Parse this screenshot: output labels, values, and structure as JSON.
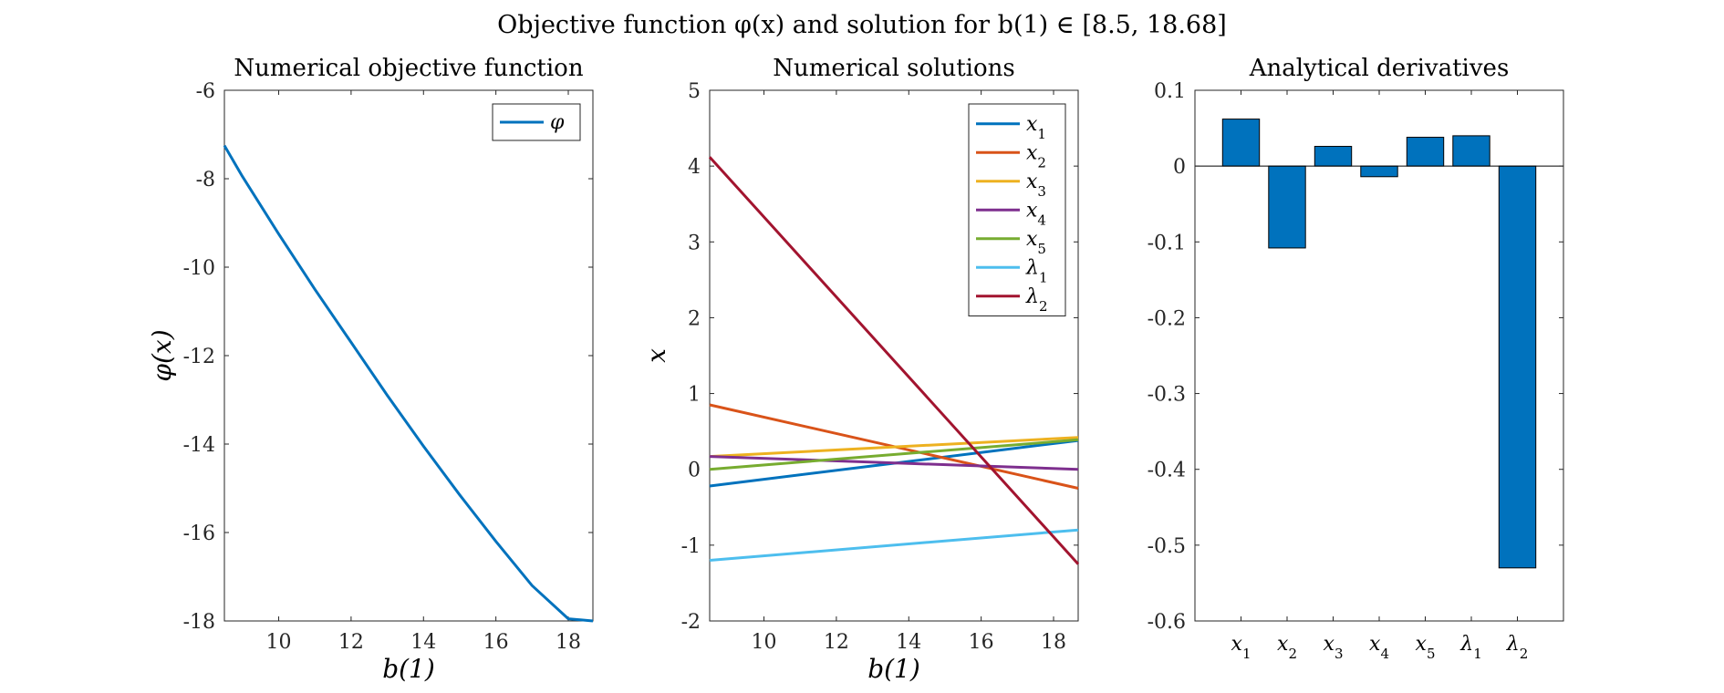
{
  "suptitle": "Objective function φ(x) and solution for b(1) ∈ [8.5, 18.68]",
  "chart_data": [
    {
      "type": "line",
      "title": "Numerical objective function",
      "xlabel": "b(1)",
      "ylabel": "φ(x)",
      "xlim": [
        8.5,
        18.68
      ],
      "ylim": [
        -18,
        -6
      ],
      "xticks": [
        10,
        12,
        14,
        16,
        18
      ],
      "yticks": [
        -6,
        -8,
        -10,
        -12,
        -14,
        -16,
        -18
      ],
      "legend_position": "top-right",
      "grid": false,
      "series": [
        {
          "name": "φ",
          "color": "#0072BD",
          "x": [
            8.5,
            9,
            10,
            11,
            12,
            13,
            14,
            15,
            16,
            17,
            18,
            18.68
          ],
          "y": [
            -7.25,
            -7.95,
            -9.25,
            -10.5,
            -11.7,
            -12.9,
            -14.05,
            -15.15,
            -16.2,
            -17.2,
            -17.95,
            -18.0
          ]
        }
      ]
    },
    {
      "type": "line",
      "title": "Numerical solutions",
      "xlabel": "b(1)",
      "ylabel": "x",
      "xlim": [
        8.5,
        18.68
      ],
      "ylim": [
        -2,
        5
      ],
      "xticks": [
        10,
        12,
        14,
        16,
        18
      ],
      "yticks": [
        5,
        4,
        3,
        2,
        1,
        0,
        -1,
        -2
      ],
      "legend_position": "top-right",
      "grid": false,
      "series": [
        {
          "name": "x1",
          "color": "#0072BD",
          "x": [
            8.5,
            18.68
          ],
          "y": [
            -0.22,
            0.38
          ]
        },
        {
          "name": "x2",
          "color": "#D95319",
          "x": [
            8.5,
            18.68
          ],
          "y": [
            0.85,
            -0.25
          ]
        },
        {
          "name": "x3",
          "color": "#EDB120",
          "x": [
            8.5,
            18.68
          ],
          "y": [
            0.17,
            0.42
          ]
        },
        {
          "name": "x4",
          "color": "#7E2F8E",
          "x": [
            8.5,
            18.68
          ],
          "y": [
            0.17,
            0.0
          ]
        },
        {
          "name": "x5",
          "color": "#77AC30",
          "x": [
            8.5,
            18.68
          ],
          "y": [
            0.0,
            0.39
          ]
        },
        {
          "name": "λ1",
          "color": "#4DBEEE",
          "x": [
            8.5,
            18.68
          ],
          "y": [
            -1.2,
            -0.8
          ]
        },
        {
          "name": "λ2",
          "color": "#A2142F",
          "x": [
            8.5,
            18.68
          ],
          "y": [
            4.12,
            -1.25
          ]
        }
      ]
    },
    {
      "type": "bar",
      "title": "Analytical derivatives",
      "categories": [
        "x1",
        "x2",
        "x3",
        "x4",
        "x5",
        "λ1",
        "λ2"
      ],
      "values": [
        0.062,
        -0.108,
        0.026,
        -0.014,
        0.038,
        0.04,
        -0.53
      ],
      "color": "#0072BD",
      "ylim": [
        -0.6,
        0.1
      ],
      "yticks": [
        0.1,
        0,
        -0.1,
        -0.2,
        -0.3,
        -0.4,
        -0.5,
        -0.6
      ],
      "grid": false
    }
  ],
  "panels": [
    {
      "title": "Numerical objective function",
      "xlabel": "b(1)",
      "ylabel": "φ(x)"
    },
    {
      "title": "Numerical solutions",
      "xlabel": "b(1)",
      "ylabel": "x"
    },
    {
      "title": "Analytical derivatives"
    }
  ]
}
